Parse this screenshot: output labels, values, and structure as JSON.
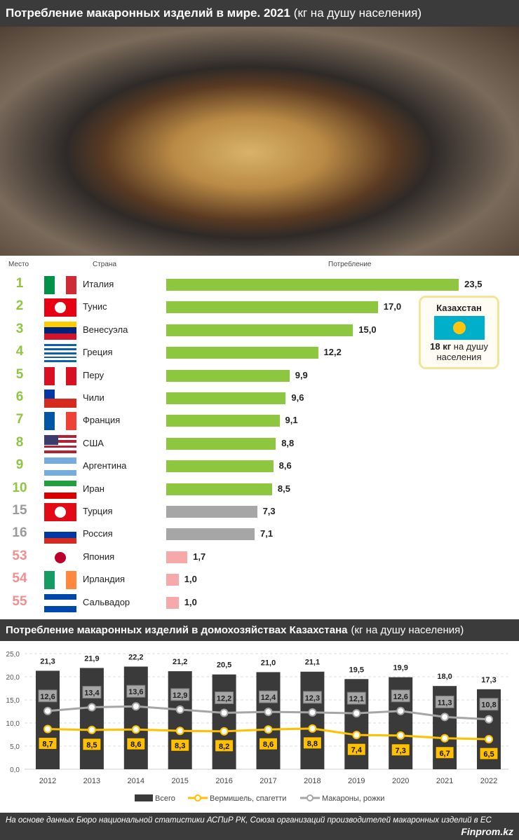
{
  "header": {
    "title_bold": "Потребление макаронных изделий в мире. 2021",
    "title_unit": "(кг на душу населения)"
  },
  "table": {
    "columns": {
      "rank": "Место",
      "country": "Страна",
      "consumption": "Потребление"
    },
    "colors": {
      "top": "#8dc63f",
      "mid": "#a6a6a6",
      "low": "#f7a8a8",
      "rank_mid": "#9a9a9a",
      "rank_low": "#f08f8f"
    },
    "rows": [
      {
        "rank": "1",
        "country": "Италия",
        "value": 23.5,
        "label": "23,5",
        "group": "top",
        "flag": {
          "dir": "v",
          "colors": [
            "#009246",
            "#ffffff",
            "#ce2b37"
          ]
        }
      },
      {
        "rank": "2",
        "country": "Тунис",
        "value": 17.0,
        "label": "17,0",
        "group": "top",
        "flag": {
          "dir": "v",
          "colors": [
            "#e70013"
          ],
          "emblem": "#ffffff"
        }
      },
      {
        "rank": "3",
        "country": "Венесуэла",
        "value": 15.0,
        "label": "15,0",
        "group": "top",
        "flag": {
          "dir": "h",
          "colors": [
            "#ffcc00",
            "#00247d",
            "#cf142b"
          ]
        }
      },
      {
        "rank": "4",
        "country": "Греция",
        "value": 12.2,
        "label": "12,2",
        "group": "top",
        "flag": {
          "dir": "h",
          "colors": [
            "#0d5eaf",
            "#ffffff",
            "#0d5eaf",
            "#ffffff",
            "#0d5eaf",
            "#ffffff",
            "#0d5eaf",
            "#ffffff",
            "#0d5eaf"
          ]
        }
      },
      {
        "rank": "5",
        "country": "Перу",
        "value": 9.9,
        "label": "9,9",
        "group": "top",
        "flag": {
          "dir": "v",
          "colors": [
            "#d91023",
            "#ffffff",
            "#d91023"
          ]
        }
      },
      {
        "rank": "6",
        "country": "Чили",
        "value": 9.6,
        "label": "9,6",
        "group": "top",
        "flag": {
          "dir": "h",
          "colors": [
            "#ffffff",
            "#d52b1e"
          ],
          "canton": "#0039a6"
        }
      },
      {
        "rank": "7",
        "country": "Франция",
        "value": 9.1,
        "label": "9,1",
        "group": "top",
        "flag": {
          "dir": "v",
          "colors": [
            "#0055a4",
            "#ffffff",
            "#ef4135"
          ]
        }
      },
      {
        "rank": "8",
        "country": "США",
        "value": 8.8,
        "label": "8,8",
        "group": "top",
        "flag": {
          "dir": "h",
          "colors": [
            "#b22234",
            "#ffffff",
            "#b22234",
            "#ffffff",
            "#b22234",
            "#ffffff",
            "#b22234"
          ],
          "canton": "#3c3b6e"
        }
      },
      {
        "rank": "9",
        "country": "Аргентина",
        "value": 8.6,
        "label": "8,6",
        "group": "top",
        "flag": {
          "dir": "h",
          "colors": [
            "#74acdf",
            "#ffffff",
            "#74acdf"
          ]
        }
      },
      {
        "rank": "10",
        "country": "Иран",
        "value": 8.5,
        "label": "8,5",
        "group": "top",
        "flag": {
          "dir": "h",
          "colors": [
            "#239f40",
            "#ffffff",
            "#da0000"
          ]
        }
      },
      {
        "rank": "15",
        "country": "Турция",
        "value": 7.3,
        "label": "7,3",
        "group": "mid",
        "flag": {
          "dir": "v",
          "colors": [
            "#e30a17"
          ],
          "emblem": "#ffffff"
        }
      },
      {
        "rank": "16",
        "country": "Россия",
        "value": 7.1,
        "label": "7,1",
        "group": "mid",
        "flag": {
          "dir": "h",
          "colors": [
            "#ffffff",
            "#0039a6",
            "#d52b1e"
          ]
        }
      },
      {
        "rank": "53",
        "country": "Япония",
        "value": 1.7,
        "label": "1,7",
        "group": "low",
        "flag": {
          "dir": "v",
          "colors": [
            "#ffffff"
          ],
          "emblem": "#bc002d"
        }
      },
      {
        "rank": "54",
        "country": "Ирландия",
        "value": 1.0,
        "label": "1,0",
        "group": "low",
        "flag": {
          "dir": "v",
          "colors": [
            "#169b62",
            "#ffffff",
            "#ff883e"
          ]
        }
      },
      {
        "rank": "55",
        "country": "Сальвадор",
        "value": 1.0,
        "label": "1,0",
        "group": "low",
        "flag": {
          "dir": "h",
          "colors": [
            "#0047ab",
            "#ffffff",
            "#0047ab"
          ]
        }
      }
    ]
  },
  "kazakhstan": {
    "title": "Казахстан",
    "value": "18 кг",
    "text": "на душу населения",
    "flag_color": "#00afca",
    "emblem_color": "#fec50c"
  },
  "chart_title": {
    "bold": "Потребление макаронных изделий в домохозяйствах Казахстана",
    "unit": "(кг на душу населения)"
  },
  "chart_data": {
    "type": "bar+line",
    "categories": [
      "2012",
      "2013",
      "2014",
      "2015",
      "2016",
      "2017",
      "2018",
      "2019",
      "2020",
      "2021",
      "2022"
    ],
    "ylim": [
      0,
      25
    ],
    "yticks": [
      "0,0",
      "5,0",
      "10,0",
      "15,0",
      "20,0",
      "25,0"
    ],
    "grid": true,
    "legend_position": "bottom",
    "series": [
      {
        "name": "Всего",
        "type": "bar",
        "color": "#3a3a3a",
        "values": [
          21.3,
          21.9,
          22.2,
          21.2,
          20.5,
          21.0,
          21.1,
          19.5,
          19.9,
          18.0,
          17.3
        ],
        "labels": [
          "21,3",
          "21,9",
          "22,2",
          "21,2",
          "20,5",
          "21,0",
          "21,1",
          "19,5",
          "19,9",
          "18,0",
          "17,3"
        ]
      },
      {
        "name": "Вермишель, спагетти",
        "type": "line",
        "color": "#ffc000",
        "values": [
          8.7,
          8.5,
          8.6,
          8.3,
          8.2,
          8.6,
          8.8,
          7.4,
          7.3,
          6.7,
          6.5
        ],
        "labels": [
          "8,7",
          "8,5",
          "8,6",
          "8,3",
          "8,2",
          "8,6",
          "8,8",
          "7,4",
          "7,3",
          "6,7",
          "6,5"
        ]
      },
      {
        "name": "Макароны, рожки",
        "type": "line",
        "color": "#a6a6a6",
        "values": [
          12.6,
          13.4,
          13.6,
          12.9,
          12.2,
          12.4,
          12.3,
          12.1,
          12.6,
          11.3,
          10.8
        ],
        "labels": [
          "12,6",
          "13,4",
          "13,6",
          "12,9",
          "12,2",
          "12,4",
          "12,3",
          "12,1",
          "12,6",
          "11,3",
          "10,8"
        ]
      }
    ]
  },
  "footer": {
    "source": "На основе данных Бюро национальной статистики АСПиР РК, Союза организаций производителей макаронных изделий в ЕС",
    "brand": "Finprom.kz"
  }
}
